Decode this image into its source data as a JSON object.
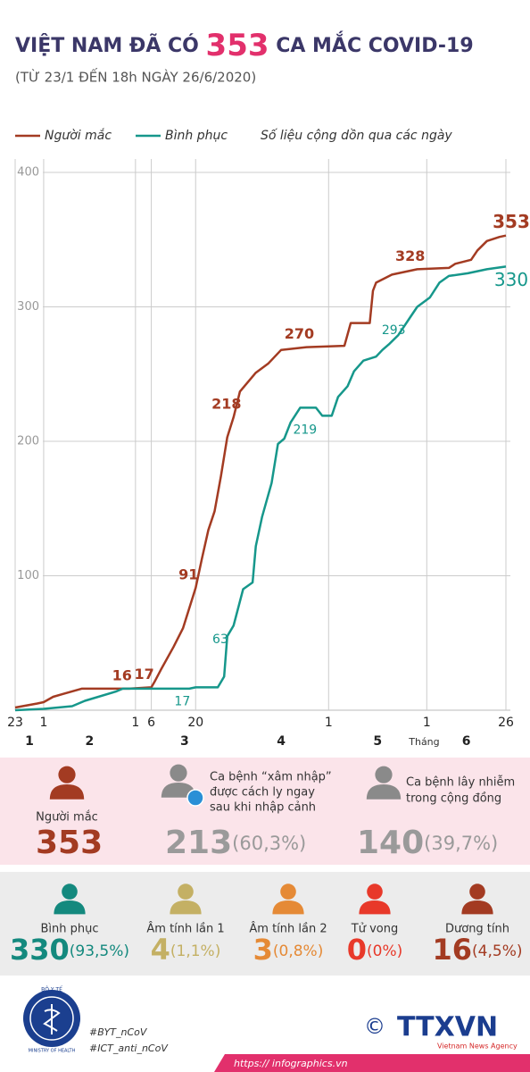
{
  "header": {
    "title_start": "VIỆT NAM ĐÃ CÓ",
    "title_number": 353,
    "title_end": "CA MẮC COVID-19",
    "subtitle": "(TỪ 23/1 ĐẾN 18h NGÀY 26/6/2020)"
  },
  "chart_data": {
    "type": "line",
    "note": "Số liệu cộng dồn qua các ngày",
    "grid": true,
    "xlim": [
      "2020-01-23",
      "2020-06-26"
    ],
    "xticks": [
      {
        "value": "2020-01-23",
        "label": "23"
      },
      {
        "value": "2020-02-01",
        "label": "1"
      },
      {
        "value": "2020-03-01",
        "label": "1"
      },
      {
        "value": "2020-03-06",
        "label": "6"
      },
      {
        "value": "2020-03-20",
        "label": "20"
      },
      {
        "value": "2020-05-01",
        "label": "1"
      },
      {
        "value": "2020-06-01",
        "label": "1"
      },
      {
        "value": "2020-06-26",
        "label": "26"
      }
    ],
    "month_labels": [
      {
        "value": "2020-01",
        "label": "1"
      },
      {
        "value": "2020-02",
        "label": "2"
      },
      {
        "value": "2020-03",
        "label": "3"
      },
      {
        "value": "2020-04",
        "label": "4"
      },
      {
        "value": "2020-05",
        "label": "5"
      },
      {
        "value": "2020-06",
        "label": "6"
      }
    ],
    "x_axis_label": "Tháng",
    "ylim": [
      0,
      400
    ],
    "yticks": [
      100,
      200,
      300,
      400
    ],
    "series": [
      {
        "name": "Người mắc",
        "color": "#a33b22",
        "x": [
          "2020-01-23",
          "2020-01-30",
          "2020-02-01",
          "2020-02-04",
          "2020-02-07",
          "2020-02-13",
          "2020-02-28",
          "2020-03-06",
          "2020-03-07",
          "2020-03-09",
          "2020-03-13",
          "2020-03-16",
          "2020-03-18",
          "2020-03-20",
          "2020-03-22",
          "2020-03-24",
          "2020-03-26",
          "2020-03-28",
          "2020-03-30",
          "2020-04-01",
          "2020-04-03",
          "2020-04-08",
          "2020-04-12",
          "2020-04-16",
          "2020-04-24",
          "2020-05-06",
          "2020-05-08",
          "2020-05-14",
          "2020-05-15",
          "2020-05-16",
          "2020-05-21",
          "2020-05-29",
          "2020-06-08",
          "2020-06-10",
          "2020-06-15",
          "2020-06-17",
          "2020-06-20",
          "2020-06-24",
          "2020-06-26"
        ],
        "values": [
          2,
          5,
          6,
          10,
          12,
          16,
          16,
          17,
          21,
          30,
          47,
          61,
          76,
          91,
          113,
          134,
          148,
          174,
          203,
          218,
          237,
          251,
          258,
          268,
          270,
          271,
          288,
          288,
          312,
          318,
          324,
          328,
          329,
          332,
          335,
          342,
          349,
          352,
          353
        ],
        "value_labels": [
          null,
          null,
          null,
          null,
          null,
          null,
          "16",
          "17",
          null,
          null,
          null,
          null,
          null,
          "91",
          null,
          null,
          null,
          null,
          null,
          "218",
          null,
          null,
          null,
          null,
          "270",
          null,
          null,
          null,
          null,
          null,
          null,
          "328",
          null,
          null,
          null,
          null,
          null,
          null,
          "353"
        ]
      },
      {
        "name": "Bình phục",
        "color": "#16978b",
        "x": [
          "2020-01-23",
          "2020-02-01",
          "2020-02-10",
          "2020-02-14",
          "2020-02-24",
          "2020-02-26",
          "2020-03-18",
          "2020-03-20",
          "2020-03-27",
          "2020-03-29",
          "2020-03-30",
          "2020-04-01",
          "2020-04-04",
          "2020-04-07",
          "2020-04-08",
          "2020-04-10",
          "2020-04-13",
          "2020-04-15",
          "2020-04-17",
          "2020-04-19",
          "2020-04-22",
          "2020-04-27",
          "2020-04-29",
          "2020-05-02",
          "2020-05-04",
          "2020-05-07",
          "2020-05-09",
          "2020-05-12",
          "2020-05-16",
          "2020-05-18",
          "2020-05-20",
          "2020-05-23",
          "2020-05-27",
          "2020-05-29",
          "2020-06-02",
          "2020-06-05",
          "2020-06-08",
          "2020-06-14",
          "2020-06-20",
          "2020-06-26"
        ],
        "values": [
          0,
          1,
          3,
          7,
          14,
          16,
          16,
          17,
          17,
          25,
          55,
          63,
          90,
          95,
          122,
          144,
          169,
          198,
          202,
          214,
          225,
          225,
          219,
          219,
          233,
          241,
          252,
          260,
          263,
          268,
          272,
          279,
          293,
          300,
          307,
          318,
          323,
          325,
          328,
          330
        ],
        "value_labels": [
          null,
          null,
          null,
          null,
          null,
          null,
          null,
          "17",
          null,
          null,
          null,
          "63",
          null,
          null,
          null,
          null,
          null,
          null,
          null,
          null,
          null,
          null,
          "219",
          null,
          null,
          null,
          null,
          null,
          null,
          null,
          null,
          null,
          "293",
          null,
          null,
          null,
          null,
          null,
          null,
          "330"
        ]
      }
    ]
  },
  "cases_panel": [
    {
      "icon_color": "#a33b22",
      "lines": [
        "Người mắc"
      ],
      "value": 353,
      "value_color": "#a33b22"
    },
    {
      "icon_color": "#8a8a8a",
      "lines": [
        "Ca bệnh “xâm nhập”",
        "được cách ly ngay",
        "sau khi nhập cảnh"
      ],
      "value": 213,
      "share": "(60,3%)",
      "value_color": "#9a9a9a"
    },
    {
      "icon_color": "#8a8a8a",
      "lines": [
        "Ca bệnh lây nhiễm",
        "trong cộng đồng"
      ],
      "value": 140,
      "share": "(39,7%)",
      "value_color": "#9a9a9a"
    }
  ],
  "status_panel": [
    {
      "label": "Bình phục",
      "value": 330,
      "share": "(93,5%)",
      "color": "#14897e"
    },
    {
      "label": "Âm tính lần 1",
      "value": 4,
      "share": "(1,1%)",
      "color": "#c4b064"
    },
    {
      "label": "Âm tính lần 2",
      "value": 3,
      "share": "(0,8%)",
      "color": "#e58a36"
    },
    {
      "label": "Tử vong",
      "value": 0,
      "share": "(0%)",
      "color": "#e8392a"
    },
    {
      "label": "Dương tính",
      "value": 16,
      "share": "(4,5%)",
      "color": "#a33b22"
    }
  ],
  "footer": {
    "ministry": "BỘ Y TẾ",
    "ministry_en": "MINISTRY OF HEALTH",
    "hashtags": [
      "#BYT_nCoV",
      "#ICT_anti_nCoV"
    ],
    "copyright": "©",
    "agency": "TTXVN",
    "agency_en": "Vietnam News Agency",
    "url": "https:// infographics.vn"
  }
}
